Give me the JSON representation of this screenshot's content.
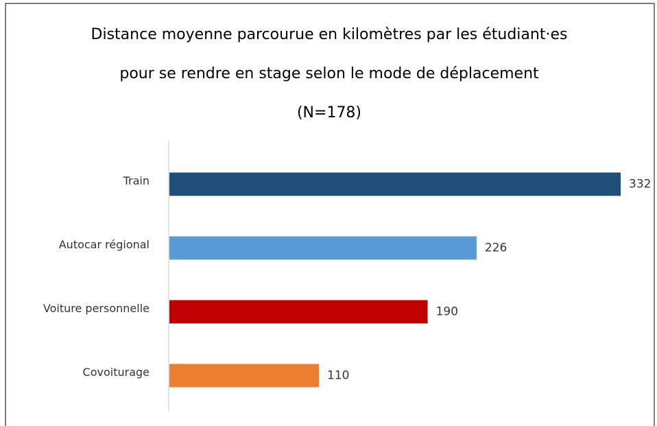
{
  "chart_data": {
    "type": "bar",
    "orientation": "horizontal",
    "title": "Distance moyenne parcourue en kilomètres par les étudiant·es pour se rendre en stage selon le mode de déplacement (N=178)",
    "categories": [
      "Train",
      "Autocar régional",
      "Voiture personnelle",
      "Covoiturage"
    ],
    "values": [
      332,
      226,
      190,
      110
    ],
    "colors": [
      "#1f4e79",
      "#5b9bd5",
      "#c00000",
      "#ed7d31"
    ]
  }
}
